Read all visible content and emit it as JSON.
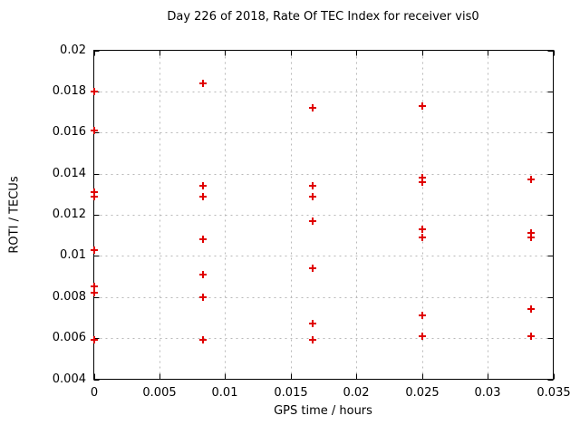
{
  "chart_data": {
    "type": "scatter",
    "title": "Day 226 of 2018, Rate Of TEC Index for receiver vis0",
    "xlabel": "GPS time / hours",
    "ylabel": "ROTI / TECUs",
    "xlim": [
      0,
      0.035
    ],
    "ylim": [
      0.004,
      0.02
    ],
    "xticks": [
      0,
      0.005,
      0.01,
      0.015,
      0.02,
      0.025,
      0.03,
      0.035
    ],
    "xtick_labels": [
      "0",
      "0.005",
      "0.01",
      "0.015",
      "0.02",
      "0.025",
      "0.03",
      "0.035"
    ],
    "yticks": [
      0.004,
      0.006,
      0.008,
      0.01,
      0.012,
      0.014,
      0.016,
      0.018,
      0.02
    ],
    "ytick_labels": [
      "0.004",
      "0.006",
      "0.008",
      "0.01",
      "0.012",
      "0.014",
      "0.016",
      "0.018",
      "0.02"
    ],
    "grid": true,
    "legend": "none",
    "marker": "plus",
    "colors": {
      "marker": "#e00000",
      "grid": "#b8b8b8",
      "axis": "#000000"
    },
    "points": [
      {
        "x": 0,
        "y": 0.018
      },
      {
        "x": 0,
        "y": 0.0161
      },
      {
        "x": 0,
        "y": 0.0131
      },
      {
        "x": 0,
        "y": 0.0129
      },
      {
        "x": 0,
        "y": 0.0103
      },
      {
        "x": 0,
        "y": 0.0085
      },
      {
        "x": 0,
        "y": 0.0082
      },
      {
        "x": 0,
        "y": 0.0059
      },
      {
        "x": 0.008333,
        "y": 0.0184
      },
      {
        "x": 0.008333,
        "y": 0.0134
      },
      {
        "x": 0.008333,
        "y": 0.0129
      },
      {
        "x": 0.008333,
        "y": 0.0108
      },
      {
        "x": 0.008333,
        "y": 0.0091
      },
      {
        "x": 0.008333,
        "y": 0.008
      },
      {
        "x": 0.008333,
        "y": 0.0059
      },
      {
        "x": 0.016667,
        "y": 0.0172
      },
      {
        "x": 0.016667,
        "y": 0.0134
      },
      {
        "x": 0.016667,
        "y": 0.0129
      },
      {
        "x": 0.016667,
        "y": 0.0117
      },
      {
        "x": 0.016667,
        "y": 0.0094
      },
      {
        "x": 0.016667,
        "y": 0.0067
      },
      {
        "x": 0.016667,
        "y": 0.0059
      },
      {
        "x": 0.025,
        "y": 0.0173
      },
      {
        "x": 0.025,
        "y": 0.0138
      },
      {
        "x": 0.025,
        "y": 0.0136
      },
      {
        "x": 0.025,
        "y": 0.0113
      },
      {
        "x": 0.025,
        "y": 0.0109
      },
      {
        "x": 0.025,
        "y": 0.0071
      },
      {
        "x": 0.025,
        "y": 0.0061
      },
      {
        "x": 0.033333,
        "y": 0.0137
      },
      {
        "x": 0.033333,
        "y": 0.0111
      },
      {
        "x": 0.033333,
        "y": 0.0109
      },
      {
        "x": 0.033333,
        "y": 0.0074
      },
      {
        "x": 0.033333,
        "y": 0.0061
      }
    ]
  }
}
